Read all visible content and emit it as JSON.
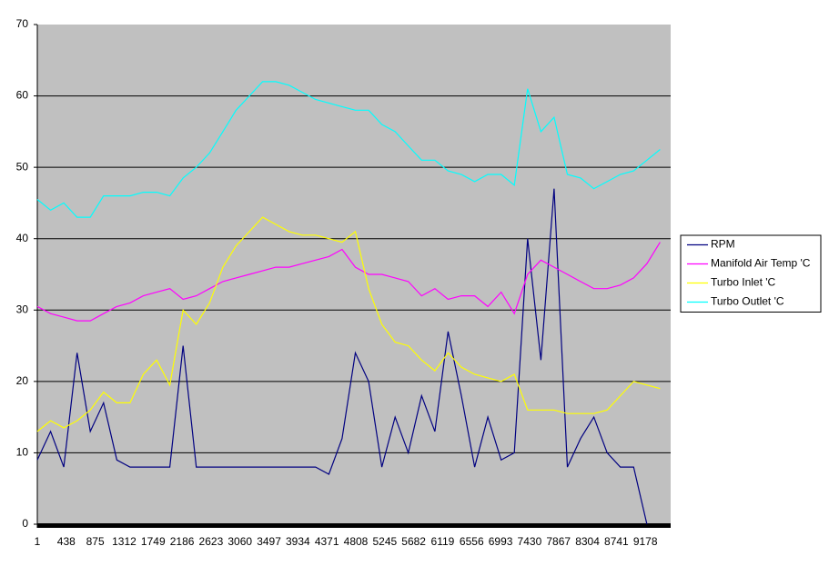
{
  "chart_data": {
    "type": "line",
    "x": [
      1,
      201,
      401,
      601,
      801,
      1001,
      1201,
      1401,
      1601,
      1801,
      2001,
      2201,
      2401,
      2601,
      2801,
      3001,
      3201,
      3401,
      3601,
      3801,
      4001,
      4201,
      4401,
      4601,
      4801,
      5001,
      5201,
      5401,
      5601,
      5801,
      6001,
      6201,
      6401,
      6601,
      6801,
      7001,
      7201,
      7401,
      7601,
      7801,
      8001,
      8201,
      8401,
      8601,
      8801,
      9001,
      9201,
      9401
    ],
    "xlim": [
      1,
      9560
    ],
    "xticks": [
      1,
      438,
      875,
      1312,
      1749,
      2186,
      2623,
      3060,
      3497,
      3934,
      4371,
      4808,
      5245,
      5682,
      6119,
      6556,
      6993,
      7430,
      7867,
      8304,
      8741,
      9178
    ],
    "ylim": [
      0,
      70
    ],
    "yticks": [
      0,
      10,
      20,
      30,
      40,
      50,
      60,
      70
    ],
    "grid": true,
    "legend": "right",
    "series": [
      {
        "name": "RPM",
        "color": "#000080",
        "values": [
          9,
          13,
          8,
          24,
          13,
          17,
          9,
          8,
          8,
          8,
          8,
          25,
          8,
          8,
          8,
          8,
          8,
          8,
          8,
          8,
          8,
          8,
          7,
          12,
          24,
          20,
          8,
          15,
          10,
          18,
          13,
          27,
          18,
          8,
          15,
          9,
          10,
          40,
          23,
          47,
          8,
          12,
          15,
          10,
          8,
          8,
          0,
          null
        ]
      },
      {
        "name": "Manifold Air Temp 'C",
        "color": "#ff00ff",
        "values": [
          30.5,
          29.5,
          29,
          28.5,
          28.5,
          29.5,
          30.5,
          31,
          32,
          32.5,
          33,
          31.5,
          32,
          33,
          34,
          34.5,
          35,
          35.5,
          36,
          36,
          36.5,
          37,
          37.5,
          38.5,
          36,
          35,
          35,
          34.5,
          34,
          32,
          33,
          31.5,
          32,
          32,
          30.5,
          32.5,
          29.5,
          35,
          37,
          36,
          35,
          34,
          33,
          33,
          33.5,
          34.5,
          36.5,
          39.5
        ]
      },
      {
        "name": "Turbo Inlet 'C",
        "color": "#ffff00",
        "values": [
          13,
          14.5,
          13.5,
          14.5,
          16,
          18.5,
          17,
          17,
          21,
          23,
          19.5,
          30,
          28,
          31,
          36,
          39,
          41,
          43,
          42,
          41,
          40.5,
          40.5,
          40,
          39.5,
          41,
          33,
          28,
          25.5,
          25,
          23,
          21.5,
          24,
          22,
          21,
          20.5,
          20,
          21,
          16,
          16,
          16,
          15.5,
          15.5,
          15.5,
          16,
          18,
          20,
          19.5,
          19
        ]
      },
      {
        "name": "Turbo Outlet 'C",
        "color": "#00ffff",
        "values": [
          45.5,
          44,
          45,
          43,
          43,
          46,
          46,
          46,
          46.5,
          46.5,
          46,
          48.5,
          50,
          52,
          55,
          58,
          60,
          62,
          62,
          61.5,
          60.5,
          59.5,
          59,
          58.5,
          58,
          58,
          56,
          55,
          53,
          51,
          51,
          49.5,
          49,
          48,
          49,
          49,
          47.5,
          61,
          55,
          57,
          49,
          48.5,
          47,
          48,
          49,
          49.5,
          51,
          52.5
        ]
      }
    ]
  }
}
